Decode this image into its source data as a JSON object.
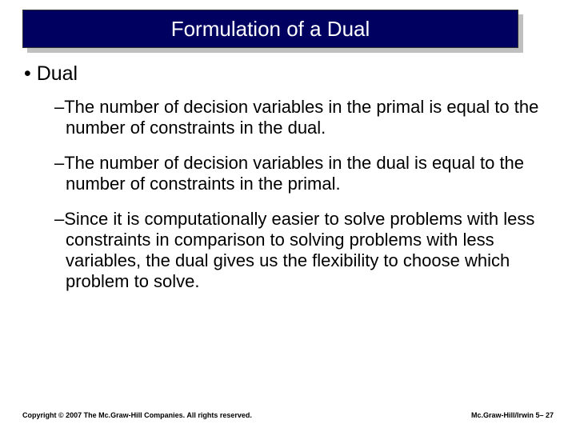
{
  "title": "Formulation of a Dual",
  "main_bullet": "• Dual",
  "sub_items": [
    "–The number of decision variables in the primal is equal to the number of constraints in the dual.",
    "–The number of decision variables in the dual is equal to the number of constraints in the primal.",
    "–Since it is computationally easier to solve problems with less constraints in comparison to solving problems with less variables, the dual gives us the flexibility to choose which problem to solve."
  ],
  "footer_left": "Copyright © 2007 The Mc.Graw-Hill Companies. All rights reserved.",
  "footer_right": "Mc.Graw-Hill/Irwin  5– 27",
  "colors": {
    "title_bg": "#000060",
    "title_text": "#ffffff",
    "shadow": "#c0c0c0",
    "body_text": "#000000",
    "page_bg": "#ffffff"
  },
  "fonts": {
    "title_size": 26,
    "main_bullet_size": 25,
    "sub_item_size": 22,
    "footer_size": 9
  }
}
